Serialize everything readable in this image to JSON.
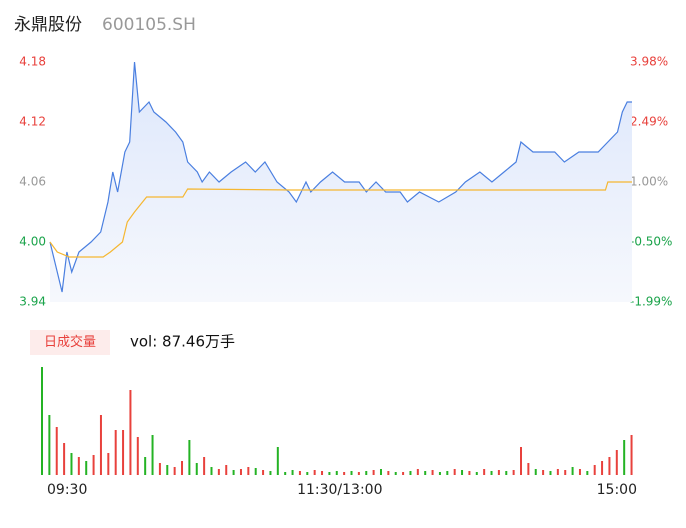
{
  "header": {
    "name": "永鼎股份",
    "code": "600105.SH"
  },
  "chart_data": [
    {
      "type": "line",
      "x": [
        0,
        2,
        5,
        7,
        9,
        12,
        17,
        21,
        24,
        26,
        28,
        31,
        33,
        35,
        37,
        41,
        43,
        48,
        52,
        55,
        57,
        61,
        63,
        66,
        70,
        75,
        81,
        85,
        89,
        94,
        99,
        102,
        106,
        108,
        112,
        117,
        122,
        128,
        131,
        135,
        139,
        145,
        148,
        153,
        161,
        168,
        172,
        178,
        183,
        188,
        193,
        195,
        200,
        209,
        213,
        219,
        227,
        231,
        235,
        237,
        239,
        241
      ],
      "series": [
        {
          "name": "price",
          "color": "#4a7fe0",
          "values": [
            4.0,
            3.98,
            3.95,
            3.99,
            3.97,
            3.99,
            4.0,
            4.01,
            4.04,
            4.07,
            4.05,
            4.09,
            4.1,
            4.18,
            4.13,
            4.14,
            4.13,
            4.12,
            4.11,
            4.1,
            4.08,
            4.07,
            4.06,
            4.07,
            4.06,
            4.07,
            4.08,
            4.07,
            4.08,
            4.06,
            4.05,
            4.04,
            4.06,
            4.05,
            4.06,
            4.07,
            4.06,
            4.06,
            4.05,
            4.06,
            4.05,
            4.05,
            4.04,
            4.05,
            4.04,
            4.05,
            4.06,
            4.07,
            4.06,
            4.07,
            4.08,
            4.1,
            4.09,
            4.09,
            4.08,
            4.09,
            4.09,
            4.1,
            4.11,
            4.13,
            4.14,
            4.14
          ]
        }
      ],
      "avg_x": [
        0,
        3,
        8,
        22,
        25,
        30,
        32,
        35,
        40,
        55,
        57,
        100,
        230,
        231,
        241
      ],
      "avg": {
        "color": "#f5b731",
        "values": [
          4.0,
          3.99,
          3.985,
          3.985,
          3.99,
          4.0,
          4.02,
          4.03,
          4.045,
          4.045,
          4.053,
          4.052,
          4.052,
          4.06,
          4.06
        ]
      },
      "xlim": [
        0,
        241
      ],
      "ylim": [
        3.94,
        4.18
      ],
      "yticks": [
        4.18,
        4.12,
        4.06,
        {
          "value": 4.0,
          "label": "4.00"
        },
        3.94
      ],
      "ytick_colors": [
        "#e8413c",
        "#e8413c",
        "#999999",
        "#1aa34a",
        "#1aa34a"
      ],
      "y2lim": [
        -1.99,
        3.98
      ],
      "y2ticks": [
        {
          "value": 3.98,
          "label": "3.98%"
        },
        {
          "value": 2.49,
          "label": "2.49%"
        },
        {
          "value": 1.0,
          "label": "1.00%"
        },
        {
          "value": -0.5,
          "label": "-0.50%"
        },
        {
          "value": -1.99,
          "label": "-1.99%"
        }
      ]
    },
    {
      "type": "volume",
      "button": "日成交量",
      "summary": "vol: 87.46万手",
      "xlim": [
        0,
        241
      ],
      "ylim": [
        0,
        110
      ],
      "x": [
        0,
        3,
        6,
        9,
        12,
        15,
        18,
        21,
        24,
        27,
        30,
        33,
        36,
        39,
        42,
        45,
        48,
        51,
        54,
        57,
        60,
        63,
        66,
        69,
        72,
        75,
        78,
        81,
        84,
        87,
        90,
        93,
        96,
        99,
        102,
        105,
        108,
        111,
        114,
        117,
        120,
        123,
        126,
        129,
        132,
        135,
        138,
        141,
        144,
        147,
        150,
        153,
        156,
        159,
        162,
        165,
        168,
        171,
        174,
        177,
        180,
        183,
        186,
        189,
        192,
        195,
        198,
        201,
        204,
        207,
        210,
        213,
        216,
        219,
        222,
        225,
        228,
        231,
        234,
        237,
        240
      ],
      "values": [
        108,
        60,
        48,
        32,
        22,
        18,
        14,
        20,
        60,
        22,
        45,
        45,
        85,
        38,
        18,
        40,
        12,
        10,
        8,
        14,
        35,
        12,
        18,
        8,
        6,
        10,
        5,
        6,
        8,
        7,
        5,
        4,
        28,
        3,
        5,
        4,
        3,
        5,
        4,
        3,
        4,
        3,
        4,
        3,
        4,
        5,
        6,
        4,
        3,
        3,
        4,
        6,
        4,
        5,
        3,
        4,
        6,
        5,
        4,
        3,
        6,
        4,
        5,
        4,
        5,
        28,
        12,
        6,
        5,
        4,
        6,
        5,
        8,
        6,
        4,
        10,
        14,
        18,
        25,
        35,
        40
      ],
      "colors": [
        "#24b324",
        "#24b324",
        "#e8413c",
        "#e8413c",
        "#24b324",
        "#e8413c",
        "#24b324",
        "#e8413c",
        "#e8413c",
        "#e8413c",
        "#e8413c",
        "#e8413c",
        "#e8413c",
        "#e8413c",
        "#24b324",
        "#24b324",
        "#e8413c",
        "#24b324",
        "#e8413c",
        "#e8413c",
        "#24b324",
        "#24b324",
        "#e8413c",
        "#24b324",
        "#e8413c",
        "#e8413c",
        "#24b324",
        "#e8413c",
        "#e8413c",
        "#24b324",
        "#e8413c",
        "#24b324",
        "#24b324",
        "#24b324",
        "#24b324",
        "#e8413c",
        "#24b324",
        "#e8413c",
        "#e8413c",
        "#24b324",
        "#24b324",
        "#e8413c",
        "#24b324",
        "#e8413c",
        "#24b324",
        "#e8413c",
        "#24b324",
        "#e8413c",
        "#24b324",
        "#e8413c",
        "#24b324",
        "#e8413c",
        "#24b324",
        "#e8413c",
        "#24b324",
        "#24b324",
        "#e8413c",
        "#24b324",
        "#e8413c",
        "#24b324",
        "#e8413c",
        "#24b324",
        "#e8413c",
        "#24b324",
        "#e8413c",
        "#e8413c",
        "#e8413c",
        "#24b324",
        "#e8413c",
        "#24b324",
        "#e8413c",
        "#e8413c",
        "#24b324",
        "#e8413c",
        "#24b324",
        "#e8413c",
        "#e8413c",
        "#e8413c",
        "#e8413c",
        "#24b324",
        "#e8413c"
      ],
      "xticks": [
        {
          "value": 0,
          "label": "09:30"
        },
        {
          "value": 120,
          "label": "11:30/13:00"
        },
        {
          "value": 241,
          "label": "15:00"
        }
      ]
    }
  ]
}
